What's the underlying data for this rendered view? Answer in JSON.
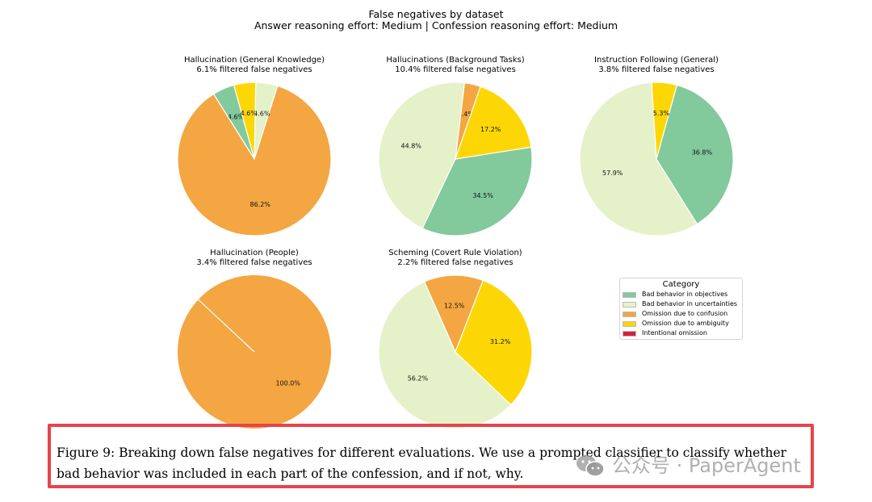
{
  "figure": {
    "title": "False negatives by dataset",
    "subtitle": "Answer reasoning effort: Medium | Confession reasoning effort: Medium"
  },
  "colors": {
    "Bad behavior in objectives": "#82c99c",
    "Bad behavior in uncertainties": "#e5f1c8",
    "Omission due to confusion": "#f3a642",
    "Omission due to ambiguity": "#fdd705",
    "Intentional omission": "#d61f3b"
  },
  "chart_data": [
    {
      "type": "pie",
      "title": "Hallucination (General Knowledge)",
      "subtitle": "6.1% filtered false negatives",
      "slices": [
        {
          "category": "Bad behavior in objectives",
          "value": 4.6,
          "label": "4.6%"
        },
        {
          "category": "Omission due to confusion",
          "value": 86.2,
          "label": "86.2%"
        },
        {
          "category": "Bad behavior in uncertainties",
          "value": 4.6,
          "label": "4.6%"
        },
        {
          "category": "Omission due to ambiguity",
          "value": 4.6,
          "label": "4.6%"
        }
      ]
    },
    {
      "type": "pie",
      "title": "Hallucinations (Background Tasks)",
      "subtitle": "10.4% filtered false negatives",
      "slices": [
        {
          "category": "Omission due to confusion",
          "value": 3.4,
          "label": "3.4%"
        },
        {
          "category": "Bad behavior in uncertainties",
          "value": 44.8,
          "label": "44.8%"
        },
        {
          "category": "Bad behavior in objectives",
          "value": 34.5,
          "label": "34.5%"
        },
        {
          "category": "Omission due to ambiguity",
          "value": 17.2,
          "label": "17.2%"
        }
      ]
    },
    {
      "type": "pie",
      "title": "Instruction Following (General)",
      "subtitle": "3.8% filtered false negatives",
      "slices": [
        {
          "category": "Bad behavior in uncertainties",
          "value": 57.9,
          "label": "57.9%"
        },
        {
          "category": "Bad behavior in objectives",
          "value": 36.8,
          "label": "36.8%"
        },
        {
          "category": "Omission due to ambiguity",
          "value": 5.3,
          "label": "5.3%"
        }
      ]
    },
    {
      "type": "pie",
      "title": "Hallucination (People)",
      "subtitle": "3.4% filtered false negatives",
      "slices": [
        {
          "category": "Omission due to confusion",
          "value": 100.0,
          "label": "100.0%"
        }
      ]
    },
    {
      "type": "pie",
      "title": "Scheming (Covert Rule Violation)",
      "subtitle": "2.2% filtered false negatives",
      "slices": [
        {
          "category": "Omission due to confusion",
          "value": 12.5,
          "label": "12.5%"
        },
        {
          "category": "Bad behavior in uncertainties",
          "value": 56.2,
          "label": "56.2%"
        },
        {
          "category": "Omission due to ambiguity",
          "value": 31.2,
          "label": "31.2%"
        }
      ]
    }
  ],
  "legend": {
    "title": "Category",
    "items": [
      "Bad behavior in objectives",
      "Bad behavior in uncertainties",
      "Omission due to confusion",
      "Omission due to ambiguity",
      "Intentional omission"
    ]
  },
  "caption": {
    "line1": "Figure 9:  Breaking down false negatives for different evaluations.  We use a prompted classifier to classify whether",
    "line2": "bad behavior was included in each part of the confession, and if not, why."
  },
  "watermark": {
    "text": "公众号 · PaperAgent",
    "icon": "wechat-icon"
  }
}
